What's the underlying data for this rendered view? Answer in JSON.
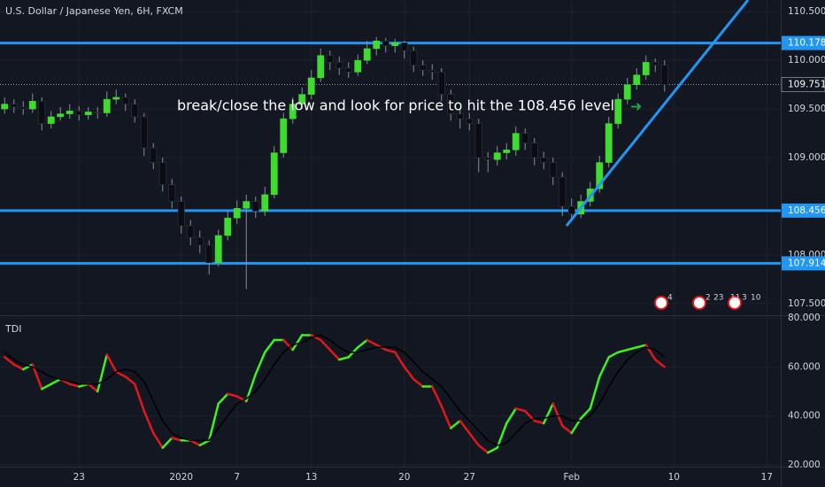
{
  "chart_data": [
    {
      "type": "candlestick",
      "title": "U.S. Dollar / Japanese Yen, 6H, FXCM",
      "categories": [
        null,
        null,
        null,
        null,
        null,
        null,
        null,
        null,
        "23",
        null,
        null,
        null,
        null,
        null,
        null,
        null,
        null,
        null,
        null,
        "2020",
        null,
        null,
        null,
        null,
        null,
        "7",
        null,
        null,
        null,
        null,
        null,
        null,
        null,
        "13",
        null,
        null,
        null,
        null,
        null,
        null,
        null,
        null,
        null,
        "20",
        null,
        null,
        null,
        null,
        null,
        null,
        "27",
        null,
        null,
        null,
        null,
        null,
        null,
        null,
        null,
        null,
        null,
        "Feb",
        null,
        null,
        null,
        null,
        null,
        null,
        null,
        null,
        null,
        null,
        "10",
        null,
        null,
        null,
        null,
        null,
        null,
        null,
        null,
        null,
        "17",
        null
      ],
      "open": [
        109.5,
        109.55,
        109.52,
        109.5,
        109.58,
        109.35,
        109.42,
        109.45,
        109.48,
        109.44,
        109.47,
        109.46,
        109.6,
        109.62,
        109.55,
        109.42,
        109.1,
        108.95,
        108.72,
        108.55,
        108.3,
        108.18,
        108.1,
        107.92,
        108.2,
        108.38,
        108.48,
        108.55,
        108.45,
        108.62,
        109.05,
        109.4,
        109.55,
        109.65,
        109.82,
        110.05,
        109.98,
        109.92,
        109.88,
        110.0,
        110.12,
        110.2,
        110.15,
        110.18,
        110.1,
        109.95,
        109.9,
        109.88,
        109.65,
        109.45,
        109.4,
        109.35,
        109.0,
        108.98,
        109.05,
        109.08,
        109.25,
        109.15,
        109.0,
        108.95,
        108.8,
        108.5,
        108.42,
        108.55,
        108.68,
        108.95,
        109.35,
        109.6,
        109.75,
        109.85,
        109.98,
        109.95,
        null,
        null,
        null,
        null,
        null,
        null,
        null,
        null,
        null,
        null,
        null,
        null
      ],
      "high": [
        109.62,
        109.6,
        109.58,
        109.66,
        109.62,
        109.48,
        109.52,
        109.55,
        109.53,
        109.52,
        109.52,
        109.68,
        109.7,
        109.66,
        109.6,
        109.46,
        109.15,
        109.0,
        108.78,
        108.6,
        108.36,
        108.25,
        108.15,
        108.26,
        108.45,
        108.56,
        108.62,
        108.6,
        108.7,
        109.12,
        109.46,
        109.62,
        109.72,
        109.9,
        110.12,
        110.1,
        110.04,
        109.98,
        110.06,
        110.2,
        110.24,
        110.23,
        110.22,
        110.2,
        110.14,
        110.0,
        109.96,
        109.92,
        109.7,
        109.5,
        109.46,
        109.4,
        109.06,
        109.12,
        109.15,
        109.32,
        109.3,
        109.2,
        109.06,
        109.0,
        108.85,
        108.58,
        108.62,
        108.75,
        109.02,
        109.42,
        109.66,
        109.82,
        109.92,
        110.05,
        110.02,
        110.0,
        null,
        null,
        null,
        null,
        null,
        null,
        null,
        null,
        null,
        null,
        null,
        null
      ],
      "low": [
        109.45,
        109.46,
        109.44,
        109.46,
        109.28,
        109.3,
        109.38,
        109.4,
        109.38,
        109.39,
        109.4,
        109.42,
        109.55,
        109.48,
        109.36,
        109.02,
        108.88,
        108.65,
        108.48,
        108.22,
        108.1,
        108.02,
        107.8,
        107.88,
        108.15,
        108.32,
        107.65,
        108.38,
        108.4,
        108.58,
        109.0,
        109.35,
        109.5,
        109.6,
        109.78,
        109.9,
        109.85,
        109.82,
        109.84,
        109.96,
        110.05,
        110.08,
        110.08,
        110.02,
        109.88,
        109.84,
        109.8,
        109.58,
        109.38,
        109.3,
        109.28,
        108.85,
        108.85,
        108.92,
        108.98,
        109.02,
        109.08,
        108.92,
        108.88,
        108.72,
        108.4,
        108.35,
        108.38,
        108.5,
        108.64,
        108.9,
        109.3,
        109.55,
        109.7,
        109.8,
        109.88,
        109.68,
        null,
        null,
        null,
        null,
        null,
        null,
        null,
        null,
        null,
        null,
        null,
        null
      ],
      "close": [
        109.55,
        109.52,
        109.5,
        109.58,
        109.35,
        109.42,
        109.45,
        109.48,
        109.44,
        109.47,
        109.46,
        109.6,
        109.62,
        109.55,
        109.42,
        109.1,
        108.95,
        108.72,
        108.55,
        108.3,
        108.18,
        108.1,
        107.92,
        108.2,
        108.38,
        108.48,
        108.55,
        108.45,
        108.62,
        109.05,
        109.4,
        109.55,
        109.65,
        109.82,
        110.05,
        109.98,
        109.92,
        109.88,
        110.0,
        110.12,
        110.2,
        110.15,
        110.18,
        110.1,
        109.95,
        109.9,
        109.88,
        109.65,
        109.45,
        109.4,
        109.35,
        109.0,
        108.98,
        109.05,
        109.08,
        109.25,
        109.15,
        109.0,
        108.95,
        108.8,
        108.5,
        108.42,
        108.55,
        108.68,
        108.95,
        109.35,
        109.6,
        109.75,
        109.85,
        109.98,
        109.95,
        109.75,
        null,
        null,
        null,
        null,
        null,
        null,
        null,
        null,
        null,
        null,
        null,
        null
      ],
      "up_color": "#3fdc2f",
      "down_color": "#0b0d12",
      "wick_color": "#8a8d96",
      "ylim": [
        107.39,
        110.62
      ],
      "yticks": [
        {
          "value": 110.5,
          "label": "110.500"
        },
        {
          "value": 110,
          "label": "110.000"
        },
        {
          "value": 109.5,
          "label": "109.500"
        },
        {
          "value": 109,
          "label": "109.000"
        },
        {
          "value": 108,
          "label": "108.000"
        },
        {
          "value": 107.5,
          "label": "107.500"
        }
      ],
      "grid": true,
      "levels": [
        110.178,
        108.456,
        107.914
      ],
      "level_color": "#2196f3",
      "last_price": 109.751,
      "annotation": "break/close the low and look for price to hit the 108.456 level",
      "badges": [
        "4",
        "2",
        "23",
        "11",
        "3",
        "10"
      ]
    },
    {
      "type": "line",
      "title": "TDI",
      "series": [
        {
          "values": [
            64,
            61,
            59,
            61,
            51,
            53,
            55,
            53,
            52,
            53,
            50,
            65,
            58,
            56,
            53,
            42,
            33,
            27,
            31,
            30,
            30,
            28,
            30,
            45,
            49,
            48,
            46,
            57,
            66,
            71,
            71,
            67,
            73,
            73,
            71,
            67,
            63,
            64,
            68,
            71,
            69,
            67,
            66,
            60,
            55,
            52,
            52,
            44,
            35,
            38,
            33,
            28,
            25,
            27,
            37,
            43,
            42,
            38,
            37,
            45,
            36,
            33,
            39,
            43,
            56,
            64,
            66,
            67,
            68,
            69,
            63,
            60,
            null,
            null,
            null,
            null,
            null,
            null,
            null,
            null,
            null,
            null,
            null,
            null
          ],
          "up_color": "#3df21e",
          "down_color": "#e3161b"
        },
        {
          "values": [
            66,
            63,
            61,
            60,
            58,
            56,
            55,
            54,
            53,
            53,
            53,
            55,
            58,
            59,
            58,
            54,
            46,
            38,
            33,
            31,
            30,
            30,
            30,
            35,
            40,
            45,
            47,
            50,
            55,
            61,
            66,
            69,
            70,
            72,
            73,
            71,
            68,
            66,
            66,
            67,
            68,
            68,
            68,
            66,
            62,
            58,
            55,
            52,
            47,
            42,
            38,
            34,
            30,
            28,
            29,
            33,
            37,
            39,
            39,
            40,
            40,
            38,
            38,
            40,
            45,
            52,
            58,
            63,
            66,
            68,
            67,
            64,
            null,
            null,
            null,
            null,
            null,
            null,
            null,
            null,
            null,
            null,
            null,
            null
          ],
          "color": "#000000"
        }
      ],
      "ylim": [
        19.3,
        80.4
      ],
      "yticks": [
        {
          "value": 80,
          "label": "80.000"
        },
        {
          "value": 60,
          "label": "60.000"
        },
        {
          "value": 40,
          "label": "40.000"
        },
        {
          "value": 20,
          "label": "20.000"
        }
      ],
      "grid": true
    }
  ]
}
